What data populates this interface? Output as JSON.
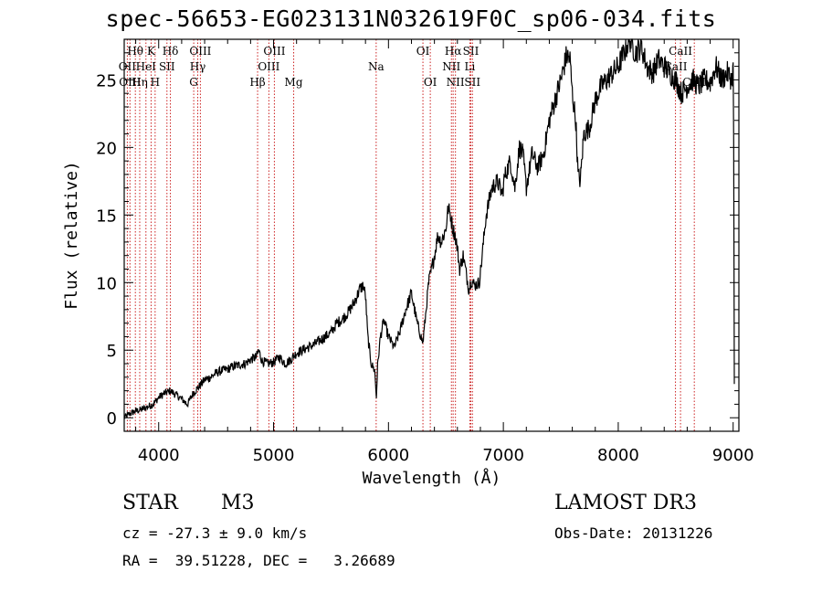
{
  "title": "spec-56653-EG023131N032619F0C_sp06-034.fits",
  "classification": {
    "type": "STAR",
    "subclass": "M3"
  },
  "survey": "LAMOST DR3",
  "redshift_text": "cz = -27.3 ± 9.0 km/s",
  "obs_date_text": "Obs-Date: 20131226",
  "coords_text": "RA =  39.51228, DEC =   3.26689",
  "colors": {
    "spectrum": "#000000",
    "line_marker": "#cc2222",
    "axes": "#000000"
  },
  "chart_data": {
    "type": "line",
    "xlabel": "Wavelength (Å)",
    "ylabel": "Flux (relative)",
    "xlim": [
      3700,
      9050
    ],
    "ylim": [
      -1,
      28
    ],
    "xticks": [
      4000,
      5000,
      6000,
      7000,
      8000,
      9000
    ],
    "yticks": [
      0,
      5,
      10,
      15,
      20,
      25
    ],
    "series": [
      {
        "name": "spectrum",
        "x": [
          3700,
          3750,
          3800,
          3850,
          3900,
          3950,
          4000,
          4050,
          4100,
          4150,
          4200,
          4250,
          4300,
          4350,
          4400,
          4450,
          4500,
          4550,
          4600,
          4650,
          4700,
          4750,
          4800,
          4850,
          4870,
          4900,
          4950,
          5000,
          5050,
          5100,
          5150,
          5200,
          5250,
          5300,
          5350,
          5400,
          5450,
          5500,
          5550,
          5600,
          5650,
          5700,
          5750,
          5780,
          5800,
          5820,
          5850,
          5880,
          5895,
          5905,
          5930,
          5960,
          6000,
          6050,
          6100,
          6150,
          6200,
          6250,
          6300,
          6350,
          6400,
          6430,
          6460,
          6500,
          6520,
          6540,
          6560,
          6580,
          6600,
          6620,
          6650,
          6680,
          6700,
          6720,
          6750,
          6790,
          6810,
          6850,
          6900,
          6950,
          6990,
          7010,
          7040,
          7060,
          7100,
          7140,
          7170,
          7200,
          7250,
          7300,
          7350,
          7400,
          7450,
          7500,
          7550,
          7580,
          7600,
          7630,
          7650,
          7670,
          7700,
          7750,
          7800,
          7850,
          7900,
          7950,
          8000,
          8050,
          8100,
          8150,
          8200,
          8250,
          8300,
          8350,
          8400,
          8450,
          8500,
          8550,
          8600,
          8650,
          8700,
          8750,
          8800,
          8850,
          8900,
          8950,
          8990,
          9000,
          9005,
          9010
        ],
        "y": [
          0,
          0.3,
          0.5,
          0.6,
          0.8,
          1.0,
          1.5,
          1.8,
          2.0,
          1.7,
          1.4,
          1.0,
          1.8,
          2.3,
          2.8,
          3.0,
          3.3,
          3.5,
          3.6,
          3.8,
          3.9,
          4.0,
          4.3,
          4.5,
          5.0,
          4.2,
          4.0,
          4.1,
          4.5,
          4.0,
          4.3,
          4.8,
          5.0,
          5.2,
          5.4,
          5.7,
          6.0,
          6.3,
          7.0,
          7.3,
          7.8,
          8.5,
          9.5,
          9.8,
          9.0,
          6.0,
          4.0,
          3.5,
          1.5,
          3.8,
          6.0,
          7.2,
          6.0,
          5.2,
          6.4,
          8.0,
          9.2,
          7.0,
          5.5,
          10.0,
          12.0,
          13.5,
          13.0,
          14.0,
          15.5,
          15.0,
          14.0,
          13.5,
          12.5,
          11.0,
          12.0,
          10.5,
          9.5,
          10.2,
          9.8,
          10.0,
          11.5,
          15.0,
          17.0,
          17.5,
          16.5,
          17.8,
          18.5,
          19.0,
          17.0,
          20.0,
          19.5,
          17.0,
          19.5,
          18.5,
          19.5,
          22.0,
          23.5,
          25.0,
          26.8,
          26.5,
          24.0,
          22.0,
          18.0,
          17.5,
          21.0,
          21.5,
          23.5,
          24.5,
          25.0,
          25.5,
          26.0,
          27.0,
          28.0,
          27.0,
          27.5,
          26.0,
          25.5,
          26.5,
          26.0,
          25.5,
          25.0,
          24.0,
          24.5,
          25.0,
          24.5,
          25.0,
          24.8,
          26.0,
          25.0,
          25.5,
          25.0,
          26.0,
          20.0,
          2.5
        ]
      }
    ],
    "line_markers": [
      {
        "label": "Hθ",
        "wavelength": 3797,
        "row": 0
      },
      {
        "label": "OII",
        "wavelength": 3727,
        "row": 1
      },
      {
        "label": "OIII",
        "wavelength": 3750,
        "row": 2
      },
      {
        "label": "K",
        "wavelength": 3934,
        "row": 0
      },
      {
        "label": "HeI",
        "wavelength": 3889,
        "row": 1
      },
      {
        "label": "Hη",
        "wavelength": 3835,
        "row": 2
      },
      {
        "label": "SII",
        "wavelength": 4072,
        "row": 1
      },
      {
        "label": "H",
        "wavelength": 3969,
        "row": 2
      },
      {
        "label": "Hδ",
        "wavelength": 4102,
        "row": 0
      },
      {
        "label": "OIII",
        "wavelength": 4363,
        "row": 0
      },
      {
        "label": "Hγ",
        "wavelength": 4340,
        "row": 1
      },
      {
        "label": "G",
        "wavelength": 4305,
        "row": 2
      },
      {
        "label": "OIII",
        "wavelength": 5007,
        "row": 0
      },
      {
        "label": "OIII",
        "wavelength": 4959,
        "row": 1
      },
      {
        "label": "Hβ",
        "wavelength": 4861,
        "row": 2
      },
      {
        "label": "Mg",
        "wavelength": 5175,
        "row": 2
      },
      {
        "label": "Na",
        "wavelength": 5893,
        "row": 1
      },
      {
        "label": "OI",
        "wavelength": 6300,
        "row": 0
      },
      {
        "label": "OI",
        "wavelength": 6364,
        "row": 2
      },
      {
        "label": "Hα",
        "wavelength": 6563,
        "row": 0
      },
      {
        "label": "SII",
        "wavelength": 6717,
        "row": 0
      },
      {
        "label": "NII",
        "wavelength": 6548,
        "row": 1
      },
      {
        "label": "Li",
        "wavelength": 6708,
        "row": 1
      },
      {
        "label": "NII",
        "wavelength": 6583,
        "row": 2
      },
      {
        "label": "SII",
        "wavelength": 6731,
        "row": 2
      },
      {
        "label": "CaII",
        "wavelength": 8542,
        "row": 0
      },
      {
        "label": "CaII",
        "wavelength": 8498,
        "row": 1
      },
      {
        "label": "CaII",
        "wavelength": 8662,
        "row": 2
      }
    ]
  }
}
